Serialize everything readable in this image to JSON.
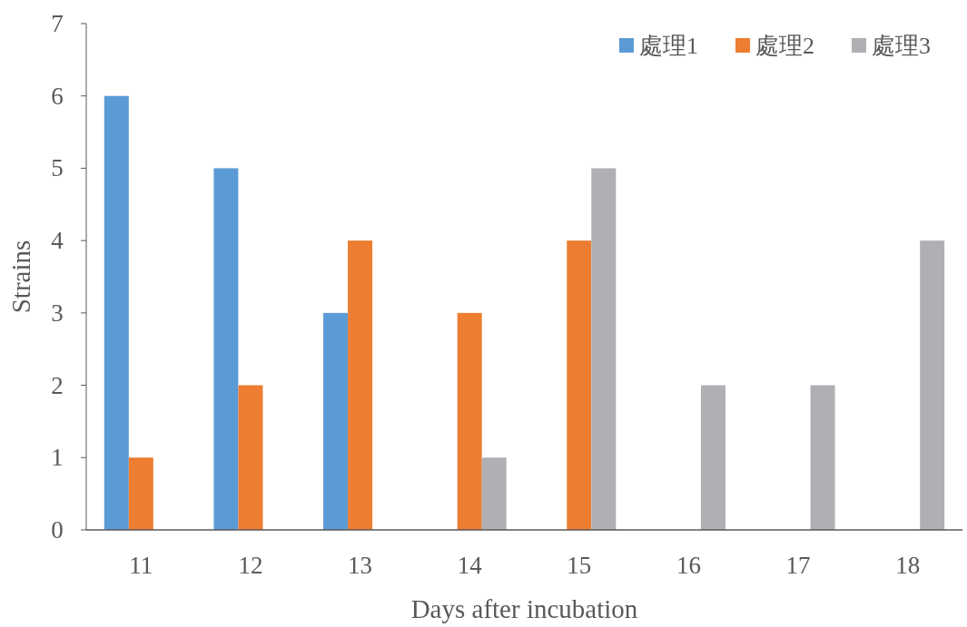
{
  "chart_data": {
    "type": "bar",
    "xlabel": "Days after incubation",
    "ylabel": "Strains",
    "categories": [
      "11",
      "12",
      "13",
      "14",
      "15",
      "16",
      "17",
      "18"
    ],
    "series": [
      {
        "name": "處理1",
        "color": "#5b9bd5",
        "values": [
          6,
          5,
          3,
          0,
          0,
          0,
          0,
          0
        ]
      },
      {
        "name": "處理2",
        "color": "#ed7d31",
        "values": [
          1,
          2,
          4,
          3,
          4,
          0,
          0,
          0
        ]
      },
      {
        "name": "處理3",
        "color": "#b0b0b4",
        "values": [
          0,
          0,
          0,
          1,
          5,
          2,
          2,
          4
        ]
      }
    ],
    "ylim": [
      0,
      7
    ],
    "yticks": [
      0,
      1,
      2,
      3,
      4,
      5,
      6,
      7
    ],
    "grid": false,
    "legend": "top right"
  }
}
